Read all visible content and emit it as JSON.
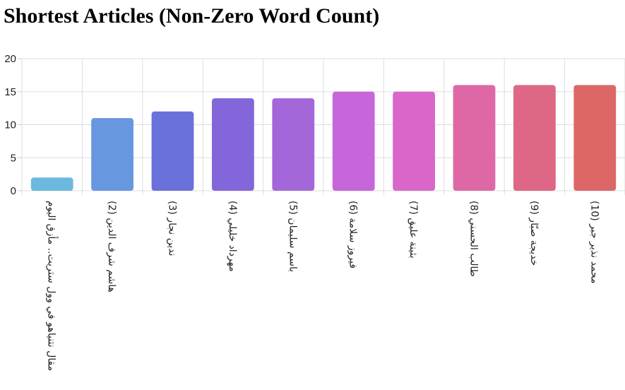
{
  "chart_data": {
    "type": "bar",
    "title": "Shortest Articles (Non-Zero Word Count)",
    "xlabel": "",
    "ylabel": "",
    "ylim": [
      0,
      20
    ],
    "yticks": [
      0,
      5,
      10,
      15,
      20
    ],
    "grid": true,
    "legend": "none",
    "categories": [
      "مقال نتنياهو في وول ستريت.. مأزق اليوم",
      "هاشم شرف الدين (2)",
      "ندين نجار (3)",
      "مهرداد خليلي (4)",
      "باسم سليمان (5)",
      "فيروز سلامة (6)",
      "بثينة عليق (7)",
      "طالب الحسني (8)",
      "خديجة صبّار (9)",
      "محمد نذير جبر (10)"
    ],
    "values": [
      2,
      11,
      12,
      14,
      14,
      15,
      15,
      16,
      16,
      16
    ],
    "colors": [
      "#6bb9df",
      "#6797de",
      "#6a71db",
      "#8266da",
      "#a367d9",
      "#c766da",
      "#da66ca",
      "#de68a6",
      "#de6785",
      "#dd6767"
    ]
  }
}
